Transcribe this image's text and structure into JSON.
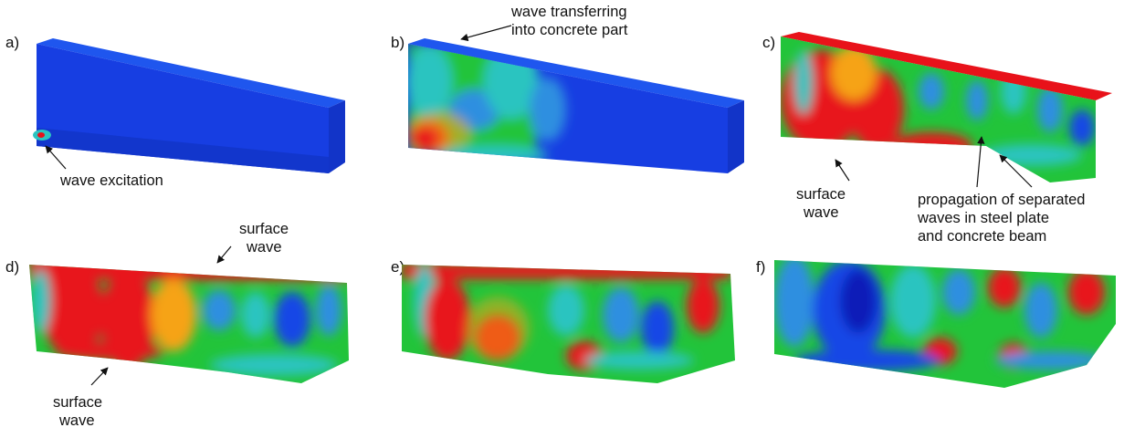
{
  "panels": [
    {
      "label": "a)"
    },
    {
      "label": "b)"
    },
    {
      "label": "c)"
    },
    {
      "label": "d)"
    },
    {
      "label": "e)"
    },
    {
      "label": "f)"
    }
  ],
  "annotations": {
    "wave_excitation": "wave excitation",
    "wave_transferring": [
      "wave transferring",
      "into concrete part"
    ],
    "surface_wave_c": [
      "surface",
      "wave"
    ],
    "propagation": [
      "propagation of separated",
      "waves in steel plate",
      "and concrete beam"
    ],
    "surface_wave_d_top": [
      "surface",
      "wave"
    ],
    "surface_wave_d_bottom": [
      "surface",
      "wave"
    ]
  },
  "colors": {
    "red": "#e8121a",
    "orange": "#f6a318",
    "yellow": "#e9e21b",
    "green": "#22c43a",
    "cyan": "#2bc4c0",
    "light_blue": "#2e8fe0",
    "blue": "#1747e6",
    "dark_blue": "#0f1fb8"
  }
}
